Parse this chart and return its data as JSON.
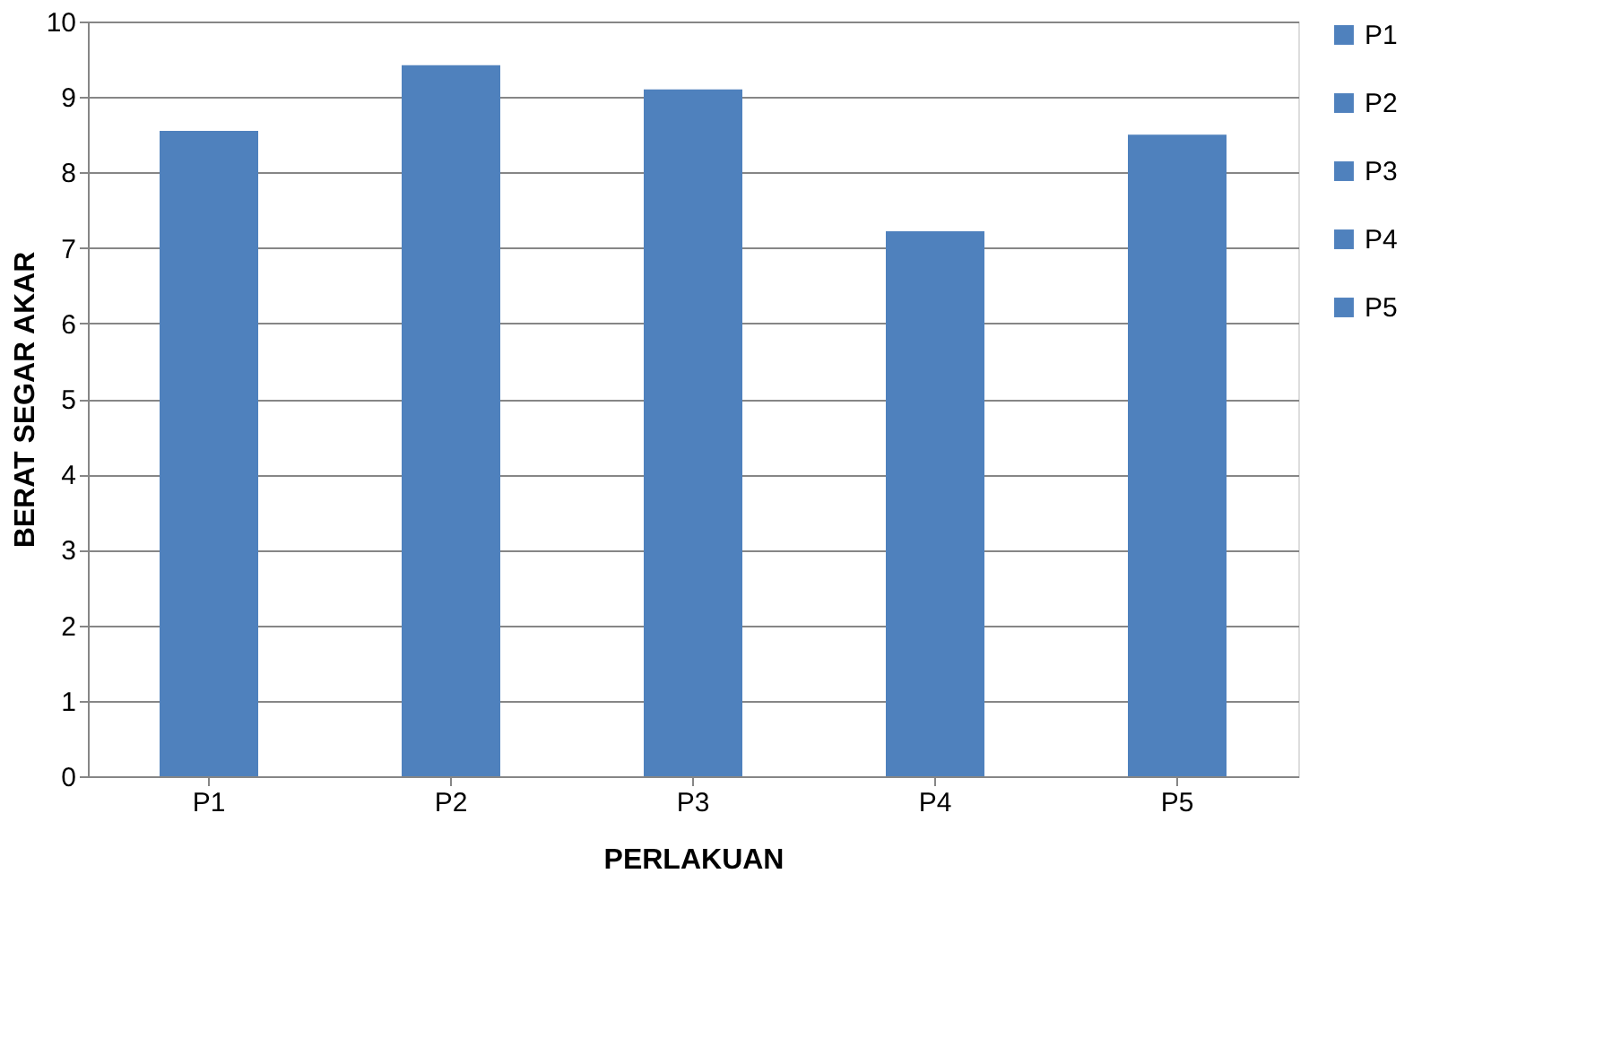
{
  "chart_data": {
    "type": "bar",
    "xlabel": "PERLAKUAN",
    "ylabel": "BERAT SEGAR AKAR",
    "categories": [
      "P1",
      "P2",
      "P3",
      "P4",
      "P5"
    ],
    "series": [
      {
        "name": "P1",
        "color": "#4f81bd",
        "values": [
          8.55,
          null,
          null,
          null,
          null
        ]
      },
      {
        "name": "P2",
        "color": "#4f81bd",
        "values": [
          null,
          9.42,
          null,
          null,
          null
        ]
      },
      {
        "name": "P3",
        "color": "#4f81bd",
        "values": [
          null,
          null,
          9.1,
          null,
          null
        ]
      },
      {
        "name": "P4",
        "color": "#4f81bd",
        "values": [
          null,
          null,
          null,
          7.22,
          null
        ]
      },
      {
        "name": "P5",
        "color": "#4f81bd",
        "values": [
          null,
          null,
          null,
          null,
          8.5
        ]
      }
    ],
    "ylim": [
      0,
      10
    ],
    "yticks": [
      0,
      1,
      2,
      3,
      4,
      5,
      6,
      7,
      8,
      9,
      10
    ],
    "grid": "y",
    "legend": "right"
  }
}
